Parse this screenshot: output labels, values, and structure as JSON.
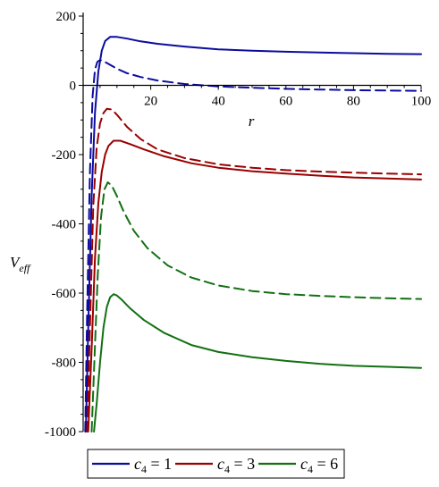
{
  "chart_data": {
    "type": "line",
    "title": "",
    "xlabel": "r",
    "ylabel_main": "V",
    "ylabel_sub": "eff",
    "xlim": [
      0,
      100
    ],
    "ylim": [
      -1000,
      200
    ],
    "x_ticks": [
      20,
      40,
      60,
      80,
      100
    ],
    "y_ticks": [
      200,
      0,
      -200,
      -400,
      -600,
      -800,
      -1000
    ],
    "x_tick_labels": [
      "20",
      "40",
      "60",
      "80",
      "100"
    ],
    "y_tick_labels": [
      "200",
      "0",
      "-200",
      "-400",
      "-600",
      "-800",
      "-1000"
    ],
    "grid": false,
    "legend_position": "bottom",
    "legend": [
      {
        "var": "c",
        "sub": "4",
        "eq": " = 1",
        "color": "#0b0b9e"
      },
      {
        "var": "c",
        "sub": "4",
        "eq": " = 3",
        "color": "#990000"
      },
      {
        "var": "c",
        "sub": "4",
        "eq": " = 6",
        "color": "#127012"
      }
    ],
    "series": [
      {
        "color": "#0b0b9e",
        "style": "solid",
        "x": [
          0.8,
          1.5,
          2.5,
          3.5,
          4.5,
          5.5,
          6.5,
          8,
          10,
          13,
          17,
          22,
          30,
          40,
          50,
          60,
          70,
          80,
          90,
          100
        ],
        "y": [
          -1000,
          -700,
          -320,
          -80,
          40,
          100,
          128,
          140,
          140,
          135,
          127,
          120,
          112,
          104,
          100,
          97,
          95,
          93,
          91,
          90
        ]
      },
      {
        "color": "#0b0b9e",
        "style": "dashed",
        "x": [
          0.6,
          1.2,
          2,
          2.8,
          3.5,
          4.2,
          5,
          6,
          7.5,
          10,
          13,
          17,
          22,
          30,
          40,
          50,
          60,
          70,
          80,
          90,
          100
        ],
        "y": [
          -1000,
          -650,
          -250,
          -30,
          45,
          68,
          73,
          70,
          62,
          48,
          35,
          24,
          14,
          4,
          -3,
          -7,
          -10,
          -12,
          -14,
          -15,
          -16
        ]
      },
      {
        "color": "#990000",
        "style": "solid",
        "x": [
          1.5,
          2.5,
          3.5,
          4.5,
          5.5,
          6.5,
          7.5,
          9,
          11,
          14,
          18,
          24,
          32,
          40,
          50,
          60,
          70,
          80,
          90,
          100
        ],
        "y": [
          -1000,
          -760,
          -500,
          -340,
          -250,
          -200,
          -175,
          -160,
          -160,
          -170,
          -185,
          -205,
          -225,
          -238,
          -248,
          -255,
          -261,
          -266,
          -269,
          -272
        ]
      },
      {
        "color": "#990000",
        "style": "dashed",
        "x": [
          1.2,
          2,
          3,
          4,
          5,
          6,
          7,
          8.5,
          10,
          13,
          17,
          22,
          30,
          40,
          50,
          60,
          70,
          80,
          90,
          100
        ],
        "y": [
          -1000,
          -700,
          -350,
          -180,
          -110,
          -80,
          -68,
          -70,
          -85,
          -120,
          -155,
          -185,
          -210,
          -228,
          -238,
          -245,
          -249,
          -252,
          -255,
          -257
        ]
      },
      {
        "color": "#127012",
        "style": "solid",
        "x": [
          3.2,
          4,
          5,
          6,
          7,
          8,
          9,
          10,
          11.5,
          14,
          18,
          24,
          32,
          40,
          50,
          60,
          70,
          80,
          90,
          100
        ],
        "y": [
          -1000,
          -920,
          -800,
          -700,
          -640,
          -612,
          -603,
          -607,
          -620,
          -645,
          -678,
          -715,
          -750,
          -770,
          -785,
          -796,
          -804,
          -810,
          -813,
          -816
        ]
      },
      {
        "color": "#127012",
        "style": "dashed",
        "x": [
          2.5,
          3.3,
          4.3,
          5.3,
          6.3,
          7.3,
          8.5,
          10,
          12,
          15,
          19,
          25,
          32,
          40,
          50,
          60,
          70,
          80,
          90,
          100
        ],
        "y": [
          -1000,
          -800,
          -550,
          -380,
          -300,
          -280,
          -290,
          -320,
          -365,
          -420,
          -470,
          -520,
          -555,
          -578,
          -594,
          -603,
          -608,
          -612,
          -615,
          -617
        ]
      }
    ]
  }
}
